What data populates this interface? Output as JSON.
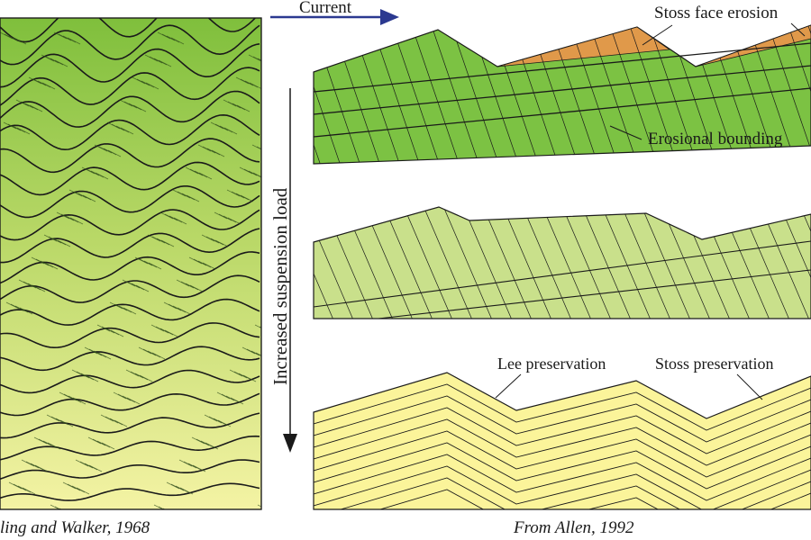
{
  "labels": {
    "current": "Current",
    "stoss_face_erosion": "Stoss face erosion",
    "erosional_bounding": "Erosional bounding",
    "increased_suspension_load": "Increased suspension load",
    "lee_preservation": "Lee preservation",
    "stoss_preservation": "Stoss preservation"
  },
  "captions": {
    "left": "ling and Walker, 1968",
    "right": "From Allen, 1992"
  },
  "colors": {
    "arrow": "#2b3990",
    "green_top": "#7cc243",
    "green_mid": "#c9e08b",
    "yellow": "#fbf49a",
    "orange": "#e0994a",
    "gradient_top": "#86c33f",
    "gradient_bottom": "#f3f3a0",
    "line": "#1a1a1a"
  }
}
